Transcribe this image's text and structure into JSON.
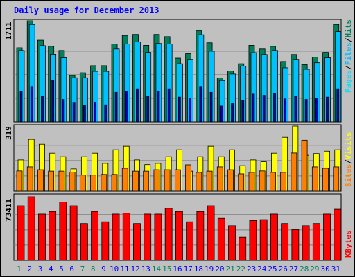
{
  "title": "Daily usage for December 2013",
  "legend_hits": {
    "pages": "Pages",
    "sep1": "/",
    "files": "Files",
    "sep2": "/",
    "hits": "Hits"
  },
  "legend_visits": {
    "sites": "Sites",
    "sep1": "/",
    "visits": "Visits"
  },
  "legend_kbytes": {
    "kbytes": "KBytes"
  },
  "colors": {
    "hits": "#00805c",
    "files": "#00c0ff",
    "pages": "#00e0ff",
    "visits": "#ffff00",
    "sites": "#ff8000",
    "kbytes": "#ff0000",
    "weekend_label": "#00805c",
    "weekday_label": "#0000ff",
    "background": "#c0c0c0",
    "plot_bg": "#c0c0c0"
  },
  "chart_data": [
    {
      "type": "bar",
      "title": "Daily usage for December 2013",
      "ylabel_max": "1711",
      "ylim": [
        0,
        1711
      ],
      "categories": [
        "1",
        "2",
        "3",
        "4",
        "5",
        "6",
        "7",
        "8",
        "9",
        "10",
        "11",
        "12",
        "13",
        "14",
        "15",
        "16",
        "17",
        "18",
        "19",
        "20",
        "21",
        "22",
        "23",
        "24",
        "25",
        "26",
        "27",
        "28",
        "29",
        "30",
        "31"
      ],
      "weekend_days": [
        "1",
        "7",
        "8",
        "14",
        "15",
        "21",
        "22",
        "28",
        "29"
      ],
      "series": [
        {
          "name": "Hits",
          "values": [
            1254,
            1711,
            1382,
            1280,
            1209,
            785,
            831,
            950,
            950,
            1317,
            1464,
            1480,
            1296,
            1480,
            1443,
            1078,
            1154,
            1540,
            1339,
            745,
            860,
            983,
            1296,
            1233,
            1279,
            1021,
            1139,
            967,
            1096,
            1176,
            1650
          ]
        },
        {
          "name": "Files",
          "values": [
            1209,
            1649,
            1290,
            1144,
            1084,
            747,
            747,
            855,
            855,
            1233,
            1317,
            1352,
            1176,
            1327,
            1317,
            983,
            1058,
            1475,
            1196,
            700,
            810,
            944,
            1172,
            1139,
            1209,
            915,
            1058,
            890,
            1000,
            1084,
            1528
          ]
        },
        {
          "name": "Pages",
          "values": [
            520,
            600,
            430,
            700,
            380,
            320,
            280,
            330,
            290,
            500,
            520,
            560,
            430,
            520,
            560,
            420,
            400,
            600,
            500,
            270,
            310,
            360,
            470,
            450,
            480,
            390,
            430,
            380,
            400,
            420,
            560
          ]
        }
      ]
    },
    {
      "type": "bar",
      "ylabel_max": "319",
      "ylim": [
        0,
        319
      ],
      "categories": [
        "1",
        "2",
        "3",
        "4",
        "5",
        "6",
        "7",
        "8",
        "9",
        "10",
        "11",
        "12",
        "13",
        "14",
        "15",
        "16",
        "17",
        "18",
        "19",
        "20",
        "21",
        "22",
        "23",
        "24",
        "25",
        "26",
        "27",
        "28",
        "29",
        "30",
        "31"
      ],
      "series": [
        {
          "name": "Visits",
          "values": [
            153,
            254,
            230,
            186,
            169,
            109,
            169,
            186,
            136,
            203,
            220,
            153,
            130,
            136,
            169,
            203,
            98,
            169,
            220,
            169,
            203,
            125,
            153,
            144,
            186,
            264,
            319,
            176,
            184,
            196,
            203
          ]
        },
        {
          "name": "Sites",
          "values": [
            99,
            119,
            105,
            98,
            98,
            93,
            79,
            79,
            82,
            82,
            112,
            98,
            98,
            105,
            105,
            105,
            129,
            92,
            98,
            119,
            105,
            85,
            92,
            99,
            92,
            92,
            187,
            250,
            119,
            112,
            119
          ]
        }
      ]
    },
    {
      "type": "bar",
      "ylabel_max": "73411",
      "ylim": [
        0,
        73411
      ],
      "categories": [
        "1",
        "2",
        "3",
        "4",
        "5",
        "6",
        "7",
        "8",
        "9",
        "10",
        "11",
        "12",
        "13",
        "14",
        "15",
        "16",
        "17",
        "18",
        "19",
        "20",
        "21",
        "22",
        "23",
        "24",
        "25",
        "26",
        "27",
        "28",
        "29",
        "30",
        "31"
      ],
      "series": [
        {
          "name": "KBytes",
          "values": [
            63000,
            73411,
            53500,
            56500,
            67500,
            63000,
            42500,
            56500,
            44500,
            53500,
            54500,
            42500,
            53500,
            53500,
            60000,
            56500,
            44500,
            56500,
            63000,
            48500,
            40000,
            27000,
            46000,
            47000,
            53500,
            42500,
            35500,
            40000,
            42500,
            53500,
            59000
          ]
        }
      ]
    }
  ]
}
